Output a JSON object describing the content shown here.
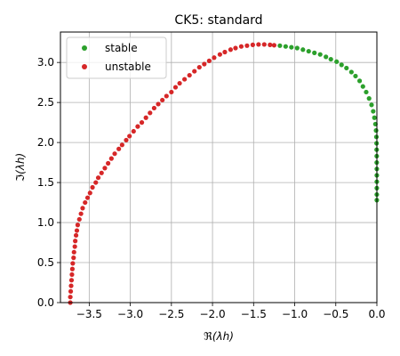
{
  "chart_data": {
    "type": "scatter",
    "title": "CK5: standard",
    "xlabel": "ℜ(λh)",
    "ylabel": "ℑ(λh)",
    "xlim": [
      -3.85,
      0.0
    ],
    "ylim": [
      0.0,
      3.38
    ],
    "xticks": [
      -3.5,
      -3.0,
      -2.5,
      -2.0,
      -1.5,
      -1.0,
      -0.5,
      0.0
    ],
    "xtick_labels": [
      "−3.5",
      "−3.0",
      "−2.5",
      "−2.0",
      "−1.5",
      "−1.0",
      "−0.5",
      "0.0"
    ],
    "yticks": [
      0.0,
      0.5,
      1.0,
      1.5,
      2.0,
      2.5,
      3.0
    ],
    "ytick_labels": [
      "0.0",
      "0.5",
      "1.0",
      "1.5",
      "2.0",
      "2.5",
      "3.0"
    ],
    "grid": true,
    "legend": {
      "placement": "top-left",
      "entries": [
        "stable",
        "unstable"
      ]
    },
    "colors": {
      "stable": "#2ca02c",
      "unstable": "#d62728",
      "grid": "#b0b0b0"
    },
    "series": [
      {
        "name": "unstable",
        "points": [
          [
            -3.73,
            0.0
          ],
          [
            -3.73,
            0.07
          ],
          [
            -3.725,
            0.14
          ],
          [
            -3.72,
            0.21
          ],
          [
            -3.715,
            0.28
          ],
          [
            -3.71,
            0.35
          ],
          [
            -3.705,
            0.42
          ],
          [
            -3.7,
            0.49
          ],
          [
            -3.69,
            0.56
          ],
          [
            -3.685,
            0.63
          ],
          [
            -3.675,
            0.7
          ],
          [
            -3.67,
            0.77
          ],
          [
            -3.66,
            0.84
          ],
          [
            -3.65,
            0.9
          ],
          [
            -3.64,
            0.97
          ],
          [
            -3.62,
            1.04
          ],
          [
            -3.6,
            1.11
          ],
          [
            -3.58,
            1.18
          ],
          [
            -3.55,
            1.25
          ],
          [
            -3.52,
            1.31
          ],
          [
            -3.49,
            1.37
          ],
          [
            -3.46,
            1.44
          ],
          [
            -3.42,
            1.5
          ],
          [
            -3.39,
            1.56
          ],
          [
            -3.35,
            1.62
          ],
          [
            -3.31,
            1.68
          ],
          [
            -3.27,
            1.74
          ],
          [
            -3.23,
            1.8
          ],
          [
            -3.19,
            1.86
          ],
          [
            -3.14,
            1.92
          ],
          [
            -3.1,
            1.97
          ],
          [
            -3.05,
            2.03
          ],
          [
            -3.01,
            2.08
          ],
          [
            -2.96,
            2.14
          ],
          [
            -2.91,
            2.2
          ],
          [
            -2.86,
            2.25
          ],
          [
            -2.81,
            2.31
          ],
          [
            -2.76,
            2.37
          ],
          [
            -2.71,
            2.43
          ],
          [
            -2.66,
            2.48
          ],
          [
            -2.61,
            2.53
          ],
          [
            -2.56,
            2.58
          ],
          [
            -2.5,
            2.63
          ],
          [
            -2.45,
            2.69
          ],
          [
            -2.4,
            2.74
          ],
          [
            -2.34,
            2.79
          ],
          [
            -2.28,
            2.84
          ],
          [
            -2.22,
            2.89
          ],
          [
            -2.16,
            2.94
          ],
          [
            -2.1,
            2.98
          ],
          [
            -2.04,
            3.02
          ],
          [
            -1.98,
            3.06
          ],
          [
            -1.91,
            3.1
          ],
          [
            -1.85,
            3.13
          ],
          [
            -1.78,
            3.16
          ],
          [
            -1.72,
            3.18
          ],
          [
            -1.65,
            3.2
          ],
          [
            -1.58,
            3.21
          ],
          [
            -1.51,
            3.22
          ],
          [
            -1.44,
            3.225
          ],
          [
            -1.37,
            3.225
          ],
          [
            -1.3,
            3.22
          ],
          [
            -1.25,
            3.215
          ]
        ]
      },
      {
        "name": "stable",
        "points": [
          [
            -1.18,
            3.21
          ],
          [
            -1.11,
            3.2
          ],
          [
            -1.04,
            3.19
          ],
          [
            -0.97,
            3.18
          ],
          [
            -0.9,
            3.16
          ],
          [
            -0.83,
            3.14
          ],
          [
            -0.76,
            3.12
          ],
          [
            -0.69,
            3.1
          ],
          [
            -0.62,
            3.07
          ],
          [
            -0.56,
            3.04
          ],
          [
            -0.49,
            3.01
          ],
          [
            -0.43,
            2.97
          ],
          [
            -0.37,
            2.93
          ],
          [
            -0.31,
            2.88
          ],
          [
            -0.26,
            2.83
          ],
          [
            -0.21,
            2.77
          ],
          [
            -0.17,
            2.7
          ],
          [
            -0.13,
            2.63
          ],
          [
            -0.095,
            2.55
          ],
          [
            -0.065,
            2.47
          ],
          [
            -0.045,
            2.39
          ],
          [
            -0.03,
            2.31
          ],
          [
            -0.018,
            2.23
          ],
          [
            -0.01,
            2.15
          ],
          [
            -0.006,
            2.07
          ],
          [
            -0.004,
            1.99
          ],
          [
            -0.003,
            1.91
          ],
          [
            -0.002,
            1.83
          ],
          [
            -0.002,
            1.75
          ],
          [
            -0.001,
            1.67
          ],
          [
            -0.001,
            1.59
          ],
          [
            -0.001,
            1.51
          ],
          [
            -0.001,
            1.43
          ],
          [
            -0.001,
            1.35
          ],
          [
            -0.001,
            1.28
          ]
        ]
      }
    ]
  }
}
